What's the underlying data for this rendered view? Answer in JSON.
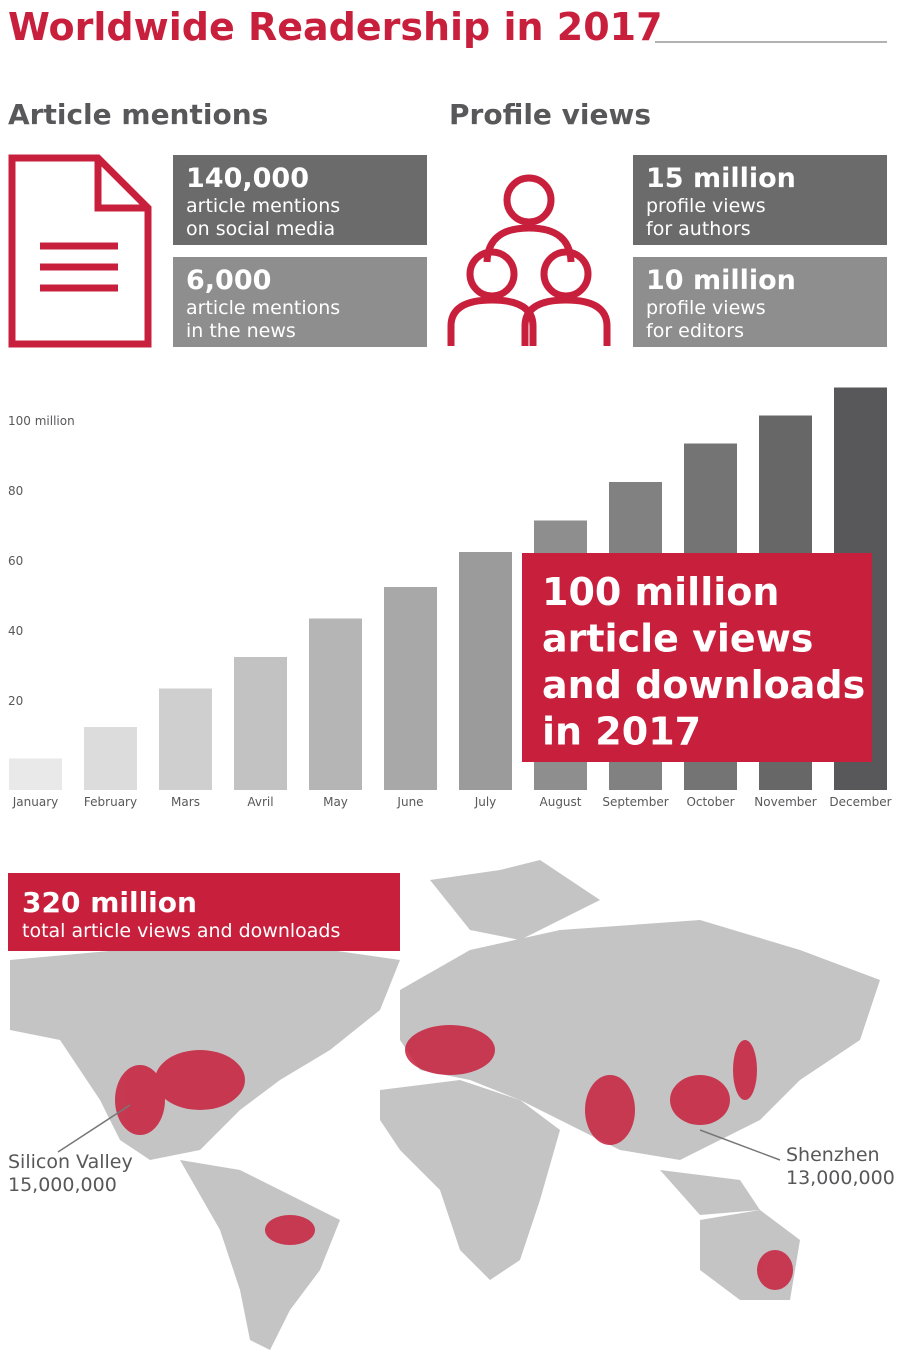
{
  "title": "Worldwide Readership in 2017",
  "article_mentions": {
    "heading": "Article mentions",
    "stats": [
      {
        "value": "140,000",
        "lines": [
          "article mentions",
          "on social media"
        ]
      },
      {
        "value": "6,000",
        "lines": [
          "article mentions",
          "in the news"
        ]
      }
    ]
  },
  "profile_views": {
    "heading": "Profile views",
    "stats": [
      {
        "value": "15 million",
        "lines": [
          "profile views",
          "for authors"
        ]
      },
      {
        "value": "10 million",
        "lines": [
          "profile views",
          "for editors"
        ]
      }
    ]
  },
  "chart_data": {
    "type": "bar",
    "categories": [
      "January",
      "February",
      "Mars",
      "Avril",
      "May",
      "June",
      "July",
      "August",
      "September",
      "October",
      "November",
      "December"
    ],
    "values": [
      9,
      18,
      29,
      38,
      49,
      58,
      68,
      77,
      88,
      99,
      107,
      115
    ],
    "colors": [
      "#e9e9ea",
      "#dcdcdd",
      "#cfcfd0",
      "#c2c2c3",
      "#b5b5b6",
      "#a8a8a9",
      "#9b9b9c",
      "#8e8e8f",
      "#818182",
      "#747475",
      "#676768",
      "#58585a"
    ],
    "ylim": [
      0,
      120
    ],
    "yticks": [
      {
        "value": 20,
        "label": "20"
      },
      {
        "value": 40,
        "label": "40"
      },
      {
        "value": 60,
        "label": "60"
      },
      {
        "value": 80,
        "label": "80"
      },
      {
        "value": 100,
        "label": "100 million"
      }
    ],
    "annotation": [
      "100 million",
      "article views",
      "and downloads",
      "in 2017"
    ]
  },
  "map": {
    "heading": "320 million",
    "subheading": "total article views and downloads",
    "labels": [
      {
        "name": "Silicon Valley",
        "value": "15,000,000"
      },
      {
        "name": "Shenzhen",
        "value": "13,000,000"
      }
    ]
  }
}
